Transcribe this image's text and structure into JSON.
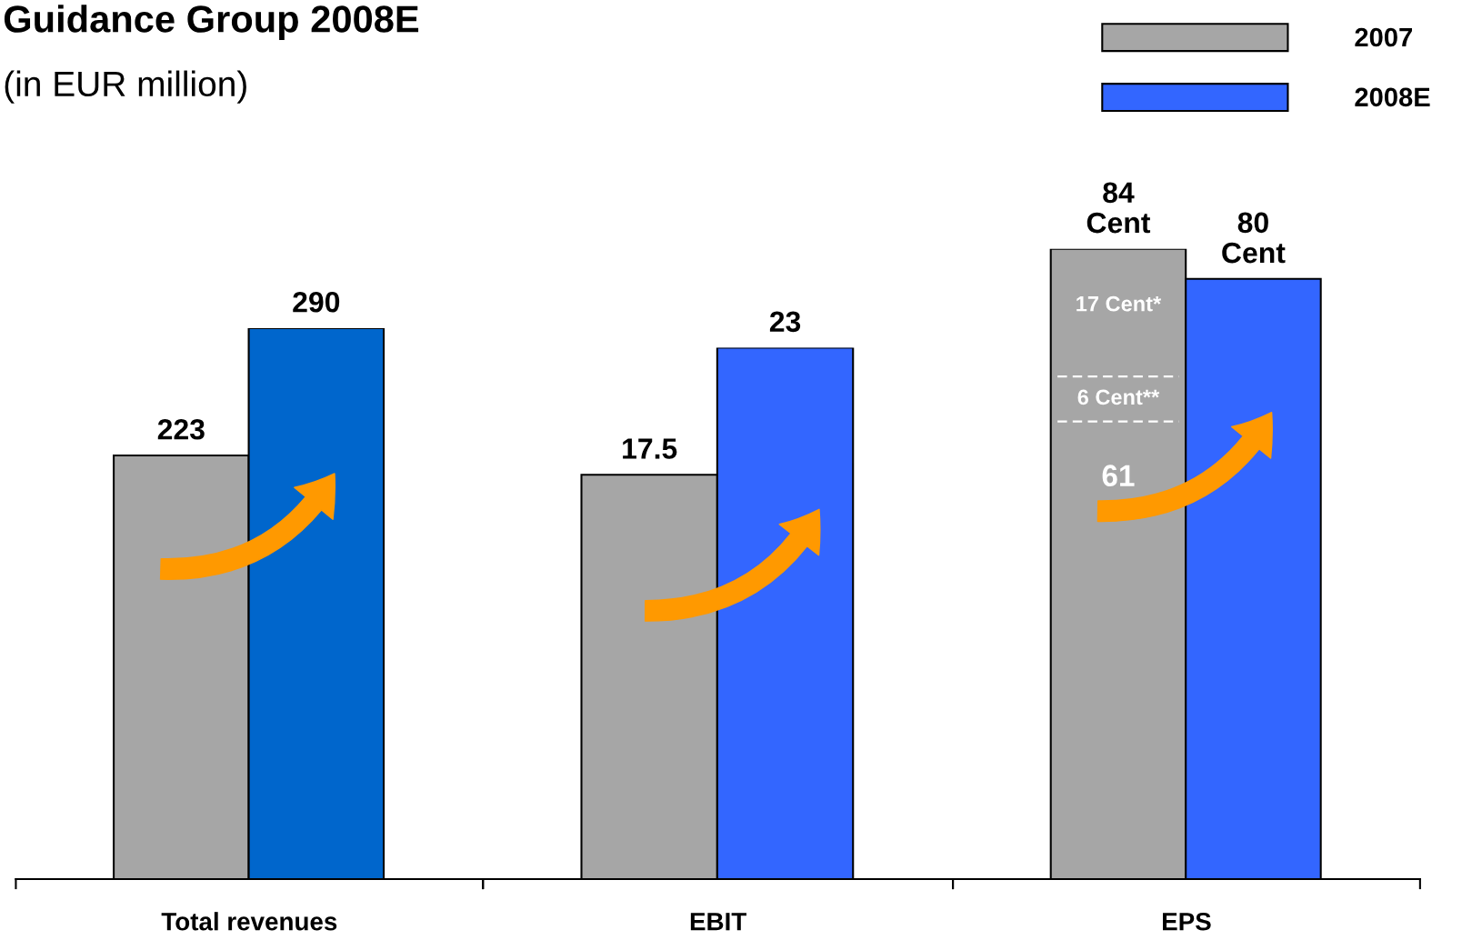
{
  "chart_data": [
    {
      "type": "bar",
      "title": "Guidance Group 2008E",
      "subtitle": "(in EUR million)",
      "xlabel": "Total revenues",
      "tick_labels": false,
      "data_labels": true,
      "categories": [
        null
      ],
      "series": [
        {
          "color": "#a6a6a6",
          "values": [
            223
          ]
        },
        {
          "color": "#0066cc",
          "values": [
            290
          ]
        }
      ]
    },
    {
      "type": "bar",
      "xlabel": "EBIT",
      "tick_labels": false,
      "data_labels": true,
      "categories": [
        null
      ],
      "series": [
        {
          "color": "#a6a6a6",
          "values": [
            17.5
          ]
        },
        {
          "color": "#3366ff",
          "values": [
            23
          ]
        }
      ]
    },
    {
      "type": "bar",
      "xlabel": "EPS",
      "tick_labels": false,
      "legend": "top right",
      "categories": [
        null
      ],
      "series": [
        {
          "name": "2007",
          "color": "#a6a6a6",
          "values": [
            84
          ],
          "value_labels": [
            "84\nCent"
          ]
        },
        {
          "name": "2008E",
          "color": "#3366ff",
          "values": [
            80
          ],
          "value_labels": [
            "80\nCent"
          ]
        }
      ],
      "ref_lines": [
        {
          "axis": "y",
          "value": 61,
          "color": "#ffffff",
          "line_style": "dashed"
        },
        {
          "axis": "y",
          "value": 67,
          "color": "#ffffff",
          "line_style": "dashed"
        }
      ],
      "annotations": [
        "17 Cent*",
        "6 Cent**",
        "61"
      ]
    }
  ]
}
